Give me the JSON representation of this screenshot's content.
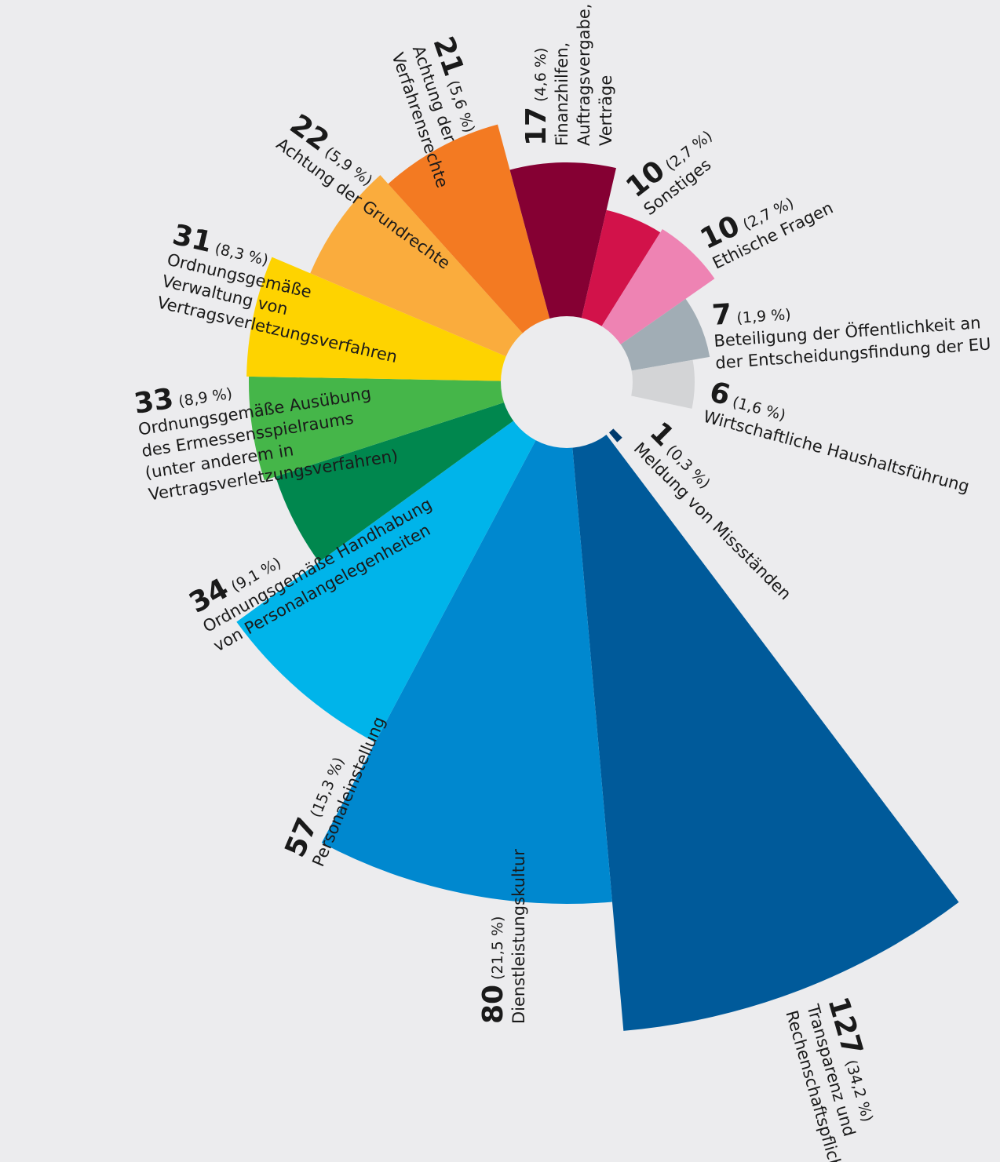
{
  "chart_data": {
    "type": "polar-area",
    "slices": [
      {
        "value": 127,
        "percent": "(34,2 %)",
        "label_lines": [
          "Transparenz und",
          "Rechenschaftspflicht"
        ],
        "color": "#005a9a"
      },
      {
        "value": 80,
        "percent": "(21,5 %)",
        "label_lines": [
          "Dienstleistungskultur"
        ],
        "color": "#0088cf"
      },
      {
        "value": 57,
        "percent": "(15,3 %)",
        "label_lines": [
          "Personaleinstellung"
        ],
        "color": "#00b4ea"
      },
      {
        "value": 34,
        "percent": "(9,1 %)",
        "label_lines": [
          "Ordnungsgemäße Handhabung",
          "von Personalangelegenheiten"
        ],
        "color": "#00874e"
      },
      {
        "value": 33,
        "percent": "(8,9 %)",
        "label_lines": [
          "Ordnungsgemäße Ausübung",
          "des Ermessensspielraums",
          "(unter anderem in",
          "Vertragsverletzungsverfahren)"
        ],
        "color": "#45b649"
      },
      {
        "value": 31,
        "percent": "(8,3 %)",
        "label_lines": [
          "Ordnungsgemäße",
          "Verwaltung von",
          "Vertragsverletzungsverfahren"
        ],
        "color": "#fed300"
      },
      {
        "value": 22,
        "percent": "(5,9 %)",
        "label_lines": [
          "Achtung der Grundrechte"
        ],
        "color": "#faac3d"
      },
      {
        "value": 21,
        "percent": "(5,6 %)",
        "label_lines": [
          "Achtung der",
          "Verfahrensrechte"
        ],
        "color": "#f37a22"
      },
      {
        "value": 17,
        "percent": "(4,6 %)",
        "label_lines": [
          "Finanzhilfen,",
          "Auftragsvergabe,",
          "Verträge"
        ],
        "color": "#850033"
      },
      {
        "value": 10,
        "percent": "(2,7 %)",
        "label_lines": [
          "Sonstiges"
        ],
        "color": "#d2124a"
      },
      {
        "value": 10,
        "percent": "(2,7 %)",
        "label_lines": [
          "Ethische Fragen"
        ],
        "color": "#ee83b3"
      },
      {
        "value": 7,
        "percent": "(1,9 %)",
        "label_lines": [
          "Beteiligung der Öffentlichkeit an",
          "der Entscheidungsfindung der EU"
        ],
        "color": "#a1adb5"
      },
      {
        "value": 6,
        "percent": "(1,6 %)",
        "label_lines": [
          "Wirtschaftliche Haushaltsführung"
        ],
        "color": "#d3d4d6"
      },
      {
        "value": 1,
        "percent": "(0,3 %)",
        "label_lines": [
          "Meldung von Missständen"
        ],
        "color": "#003a6c"
      }
    ]
  }
}
